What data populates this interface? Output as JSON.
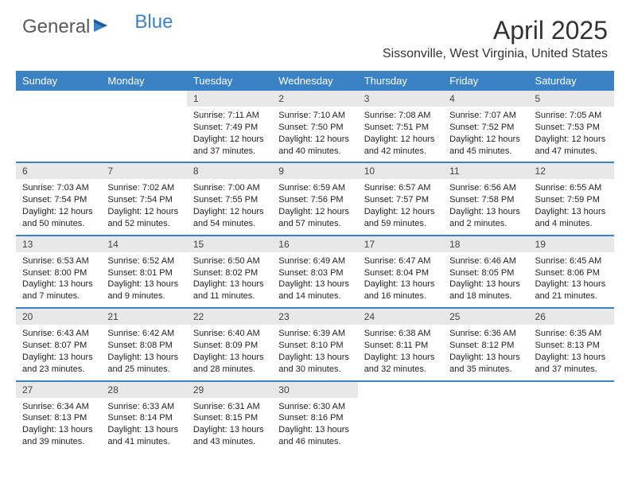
{
  "logo": {
    "text1": "General",
    "text2": "Blue"
  },
  "title": "April 2025",
  "location": "Sissonville, West Virginia, United States",
  "colors": {
    "header_bg": "#3b82c4",
    "header_text": "#ffffff",
    "daynum_bg": "#e8e8e8",
    "body_text": "#222222",
    "rule": "#3b82c4"
  },
  "days_of_week": [
    "Sunday",
    "Monday",
    "Tuesday",
    "Wednesday",
    "Thursday",
    "Friday",
    "Saturday"
  ],
  "weeks": [
    [
      null,
      null,
      {
        "n": "1",
        "sr": "7:11 AM",
        "ss": "7:49 PM",
        "dl": "12 hours and 37 minutes."
      },
      {
        "n": "2",
        "sr": "7:10 AM",
        "ss": "7:50 PM",
        "dl": "12 hours and 40 minutes."
      },
      {
        "n": "3",
        "sr": "7:08 AM",
        "ss": "7:51 PM",
        "dl": "12 hours and 42 minutes."
      },
      {
        "n": "4",
        "sr": "7:07 AM",
        "ss": "7:52 PM",
        "dl": "12 hours and 45 minutes."
      },
      {
        "n": "5",
        "sr": "7:05 AM",
        "ss": "7:53 PM",
        "dl": "12 hours and 47 minutes."
      }
    ],
    [
      {
        "n": "6",
        "sr": "7:03 AM",
        "ss": "7:54 PM",
        "dl": "12 hours and 50 minutes."
      },
      {
        "n": "7",
        "sr": "7:02 AM",
        "ss": "7:54 PM",
        "dl": "12 hours and 52 minutes."
      },
      {
        "n": "8",
        "sr": "7:00 AM",
        "ss": "7:55 PM",
        "dl": "12 hours and 54 minutes."
      },
      {
        "n": "9",
        "sr": "6:59 AM",
        "ss": "7:56 PM",
        "dl": "12 hours and 57 minutes."
      },
      {
        "n": "10",
        "sr": "6:57 AM",
        "ss": "7:57 PM",
        "dl": "12 hours and 59 minutes."
      },
      {
        "n": "11",
        "sr": "6:56 AM",
        "ss": "7:58 PM",
        "dl": "13 hours and 2 minutes."
      },
      {
        "n": "12",
        "sr": "6:55 AM",
        "ss": "7:59 PM",
        "dl": "13 hours and 4 minutes."
      }
    ],
    [
      {
        "n": "13",
        "sr": "6:53 AM",
        "ss": "8:00 PM",
        "dl": "13 hours and 7 minutes."
      },
      {
        "n": "14",
        "sr": "6:52 AM",
        "ss": "8:01 PM",
        "dl": "13 hours and 9 minutes."
      },
      {
        "n": "15",
        "sr": "6:50 AM",
        "ss": "8:02 PM",
        "dl": "13 hours and 11 minutes."
      },
      {
        "n": "16",
        "sr": "6:49 AM",
        "ss": "8:03 PM",
        "dl": "13 hours and 14 minutes."
      },
      {
        "n": "17",
        "sr": "6:47 AM",
        "ss": "8:04 PM",
        "dl": "13 hours and 16 minutes."
      },
      {
        "n": "18",
        "sr": "6:46 AM",
        "ss": "8:05 PM",
        "dl": "13 hours and 18 minutes."
      },
      {
        "n": "19",
        "sr": "6:45 AM",
        "ss": "8:06 PM",
        "dl": "13 hours and 21 minutes."
      }
    ],
    [
      {
        "n": "20",
        "sr": "6:43 AM",
        "ss": "8:07 PM",
        "dl": "13 hours and 23 minutes."
      },
      {
        "n": "21",
        "sr": "6:42 AM",
        "ss": "8:08 PM",
        "dl": "13 hours and 25 minutes."
      },
      {
        "n": "22",
        "sr": "6:40 AM",
        "ss": "8:09 PM",
        "dl": "13 hours and 28 minutes."
      },
      {
        "n": "23",
        "sr": "6:39 AM",
        "ss": "8:10 PM",
        "dl": "13 hours and 30 minutes."
      },
      {
        "n": "24",
        "sr": "6:38 AM",
        "ss": "8:11 PM",
        "dl": "13 hours and 32 minutes."
      },
      {
        "n": "25",
        "sr": "6:36 AM",
        "ss": "8:12 PM",
        "dl": "13 hours and 35 minutes."
      },
      {
        "n": "26",
        "sr": "6:35 AM",
        "ss": "8:13 PM",
        "dl": "13 hours and 37 minutes."
      }
    ],
    [
      {
        "n": "27",
        "sr": "6:34 AM",
        "ss": "8:13 PM",
        "dl": "13 hours and 39 minutes."
      },
      {
        "n": "28",
        "sr": "6:33 AM",
        "ss": "8:14 PM",
        "dl": "13 hours and 41 minutes."
      },
      {
        "n": "29",
        "sr": "6:31 AM",
        "ss": "8:15 PM",
        "dl": "13 hours and 43 minutes."
      },
      {
        "n": "30",
        "sr": "6:30 AM",
        "ss": "8:16 PM",
        "dl": "13 hours and 46 minutes."
      },
      null,
      null,
      null
    ]
  ],
  "labels": {
    "sunrise": "Sunrise:",
    "sunset": "Sunset:",
    "daylight": "Daylight:"
  }
}
